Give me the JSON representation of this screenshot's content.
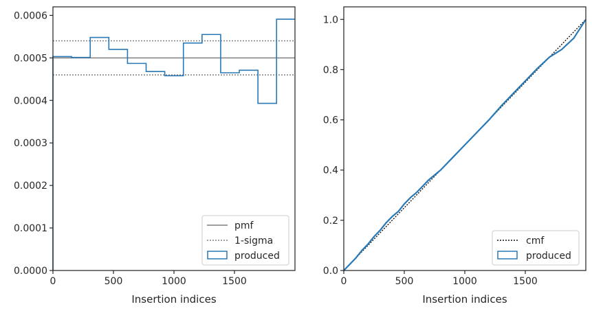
{
  "colors": {
    "produced": "#2878b5",
    "pmf": "#7f7f7f",
    "sigma": "#7f7f7f",
    "cmf": "#111111",
    "axis": "#262626"
  },
  "chart_data": [
    {
      "type": "histogram-step",
      "xlabel": "Insertion indices",
      "ylabel": "",
      "xlim": [
        0,
        2000
      ],
      "ylim": [
        0,
        0.00062
      ],
      "xticks": [
        0,
        500,
        1000,
        1500
      ],
      "yticks": [
        0.0,
        0.0001,
        0.0002,
        0.0003,
        0.0004,
        0.0005,
        0.0006
      ],
      "ytick_labels": [
        "0.0000",
        "0.0001",
        "0.0002",
        "0.0003",
        "0.0004",
        "0.0005",
        "0.0006"
      ],
      "pmf": 0.0005,
      "sigma": [
        0.00046,
        0.00054
      ],
      "bin_edges": [
        0,
        154,
        308,
        462,
        616,
        770,
        924,
        1078,
        1232,
        1386,
        1540,
        1694,
        1848,
        2000
      ],
      "produced": [
        0.000503,
        0.000501,
        0.000548,
        0.00052,
        0.000487,
        0.000468,
        0.000458,
        0.000535,
        0.000555,
        0.000465,
        0.000471,
        0.000393,
        0.000591
      ],
      "legend": {
        "position": "lower-right",
        "items": [
          "pmf",
          "1-sigma",
          "produced"
        ]
      }
    },
    {
      "type": "cumulative",
      "xlabel": "Insertion indices",
      "ylabel": "",
      "xlim": [
        0,
        2000
      ],
      "ylim": [
        0,
        1.05
      ],
      "xticks": [
        0,
        500,
        1000,
        1500
      ],
      "yticks": [
        0.0,
        0.2,
        0.4,
        0.6,
        0.8,
        1.0
      ],
      "ytick_labels": [
        "0.0",
        "0.2",
        "0.4",
        "0.6",
        "0.8",
        "1.0"
      ],
      "cmf": {
        "x": [
          0,
          2000
        ],
        "y": [
          0,
          1
        ]
      },
      "produced": {
        "x": [
          0,
          50,
          100,
          150,
          200,
          250,
          300,
          350,
          400,
          450,
          500,
          550,
          600,
          650,
          700,
          750,
          800,
          900,
          1000,
          1100,
          1200,
          1300,
          1400,
          1500,
          1600,
          1700,
          1800,
          1900,
          2000
        ],
        "y": [
          0,
          0.025,
          0.05,
          0.08,
          0.105,
          0.135,
          0.16,
          0.19,
          0.215,
          0.235,
          0.265,
          0.29,
          0.31,
          0.335,
          0.36,
          0.38,
          0.4,
          0.45,
          0.5,
          0.55,
          0.6,
          0.655,
          0.705,
          0.755,
          0.805,
          0.85,
          0.88,
          0.925,
          1.0
        ]
      },
      "legend": {
        "position": "lower-right",
        "items": [
          "cmf",
          "produced"
        ]
      }
    }
  ]
}
